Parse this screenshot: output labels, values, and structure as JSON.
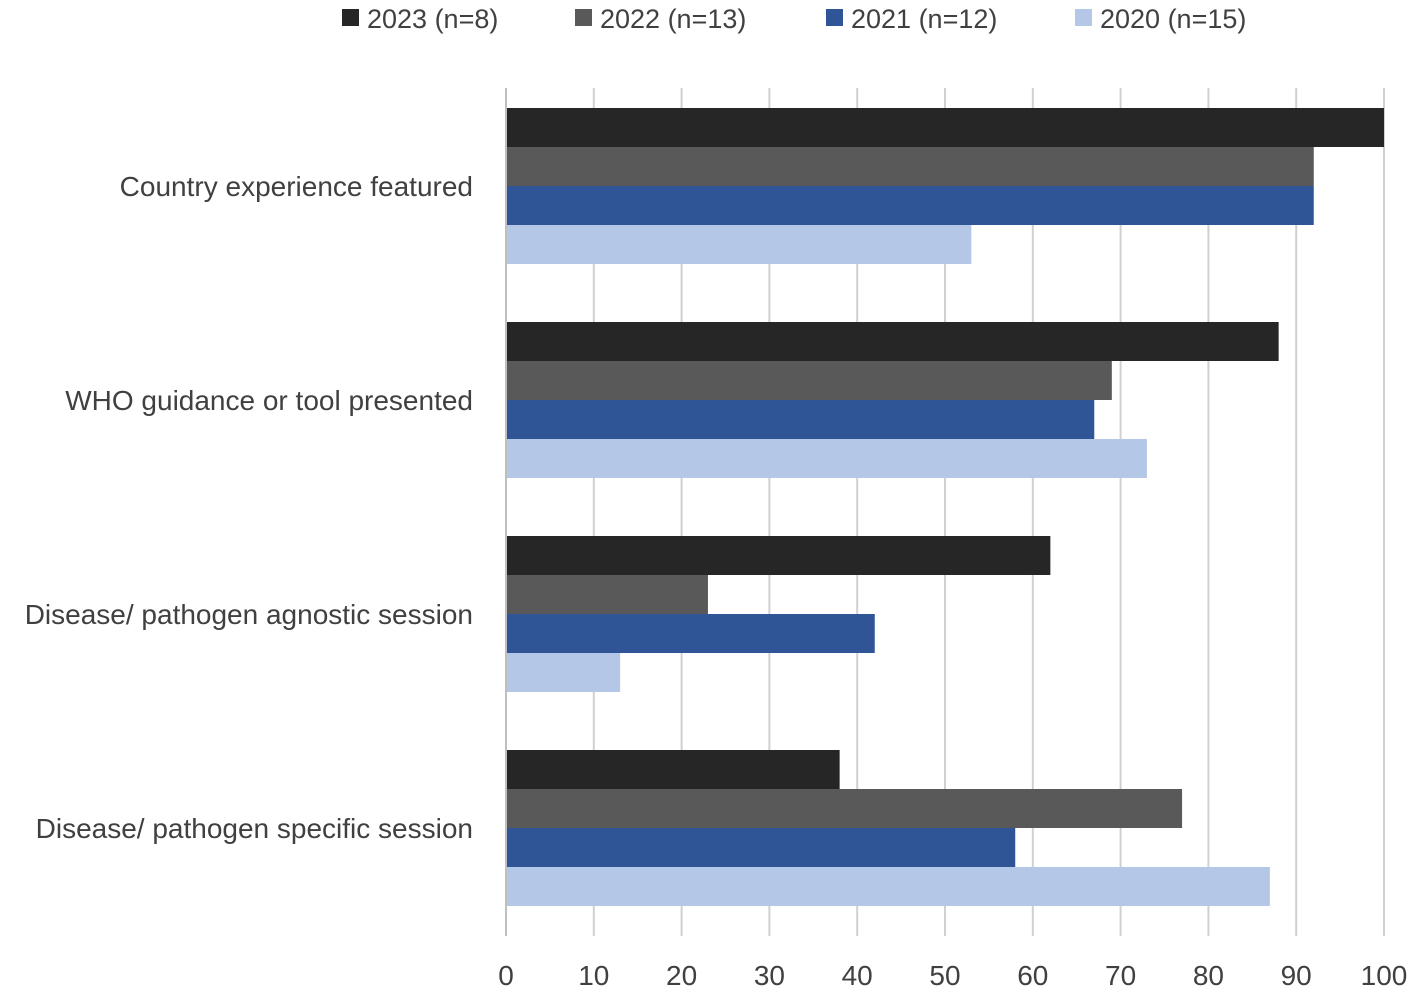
{
  "chart_data": {
    "type": "bar",
    "orientation": "horizontal",
    "title": "",
    "xlabel": "",
    "ylabel": "",
    "xlim": [
      0,
      100
    ],
    "xticks": [
      0,
      10,
      20,
      30,
      40,
      50,
      60,
      70,
      80,
      90,
      100
    ],
    "grid": true,
    "legend_position": "top",
    "categories": [
      "Country experience featured",
      "WHO guidance or tool presented",
      "Disease/ pathogen agnostic session",
      "Disease/ pathogen specific session"
    ],
    "series": [
      {
        "name": "2023 (n=8)",
        "color": "#262626",
        "values": [
          100,
          88,
          62,
          38
        ]
      },
      {
        "name": "2022 (n=13)",
        "color": "#595959",
        "values": [
          92,
          69,
          23,
          77
        ]
      },
      {
        "name": "2021 (n=12)",
        "color": "#2f5597",
        "values": [
          92,
          67,
          42,
          58
        ]
      },
      {
        "name": "2020 (n=15)",
        "color": "#b4c7e7",
        "values": [
          53,
          73,
          13,
          87
        ]
      }
    ]
  }
}
